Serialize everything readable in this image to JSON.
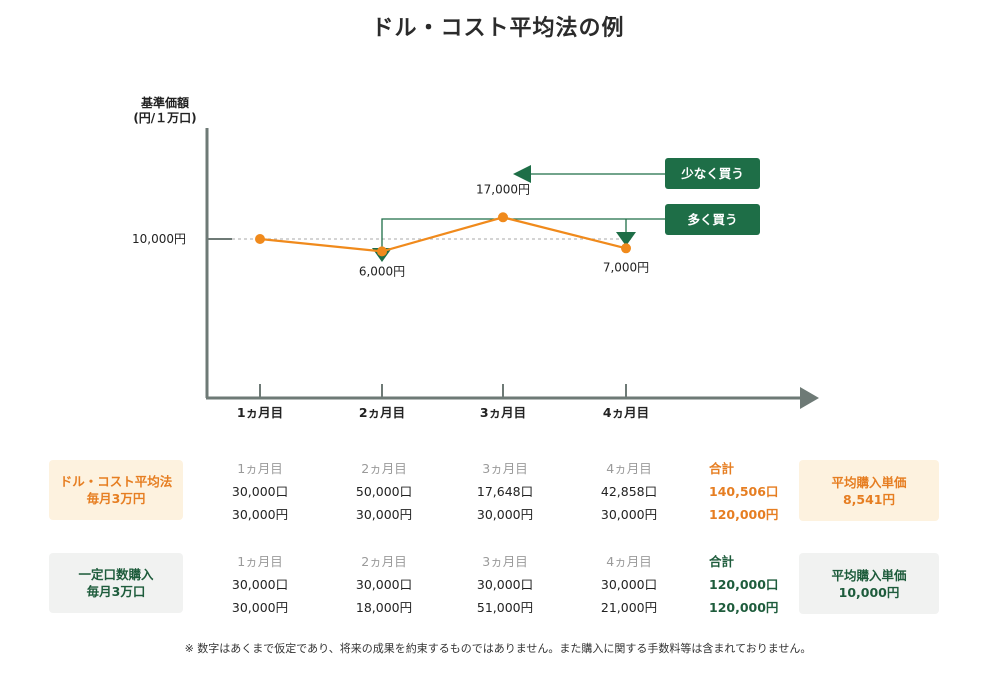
{
  "title": "ドル・コスト平均法の例",
  "chart_data": {
    "type": "line",
    "ylabel": "基準価額",
    "ylabel_unit": "(円/１万口)",
    "x": [
      "1ヵ月目",
      "2ヵ月目",
      "3ヵ月目",
      "4ヵ月目"
    ],
    "series": [
      {
        "values": [
          10000,
          6000,
          17000,
          7000
        ]
      }
    ],
    "point_labels": [
      "",
      "6,000円",
      "17,000円",
      "7,000円"
    ],
    "reference_line": {
      "value": 10000,
      "label": "10,000円"
    },
    "annotations": [
      {
        "label": "少なく買う",
        "targets": [
          "3ヵ月目"
        ]
      },
      {
        "label": "多く買う",
        "targets": [
          "2ヵ月目",
          "4ヵ月目"
        ]
      }
    ],
    "colors": {
      "line": "#f08a1c",
      "axis": "#6e7a76",
      "annotation": "#1e6e47"
    }
  },
  "colors": {
    "orange": "#e67e22",
    "green": "#1e5c3c",
    "orange_bg": "#fdf2df",
    "gray_bg": "#f1f2f1"
  },
  "table": {
    "months": [
      "1ヵ月目",
      "2ヵ月目",
      "3ヵ月目",
      "4ヵ月目"
    ],
    "total_label": "合計",
    "rows": [
      {
        "name_line1": "ドル・コスト平均法",
        "name_line2": "毎月3万円",
        "units": [
          "30,000口",
          "50,000口",
          "17,648口",
          "42,858口"
        ],
        "amounts": [
          "30,000円",
          "30,000円",
          "30,000円",
          "30,000円"
        ],
        "total_units": "140,506口",
        "total_amount": "120,000円",
        "result_label": "平均購入単価",
        "result_value": "8,541円"
      },
      {
        "name_line1": "一定口数購入",
        "name_line2": "毎月3万口",
        "units": [
          "30,000口",
          "30,000口",
          "30,000口",
          "30,000口"
        ],
        "amounts": [
          "30,000円",
          "18,000円",
          "51,000円",
          "21,000円"
        ],
        "total_units": "120,000口",
        "total_amount": "120,000円",
        "result_label": "平均購入単価",
        "result_value": "10,000円"
      }
    ]
  },
  "footnote": "※ 数字はあくまで仮定であり、将来の成果を約束するものではありません。また購入に関する手数料等は含まれておりません。"
}
